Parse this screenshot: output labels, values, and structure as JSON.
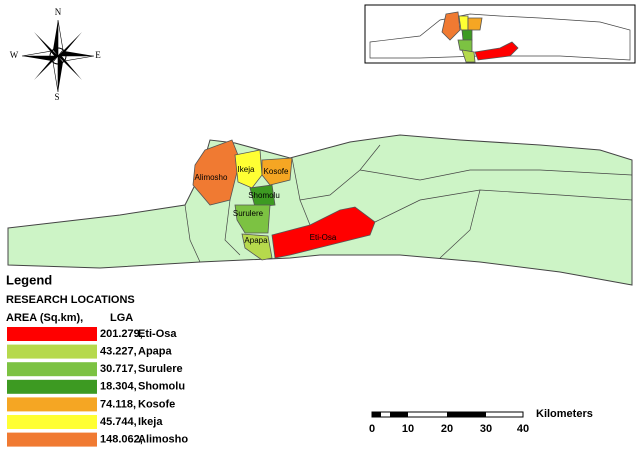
{
  "compass": {
    "north": "N",
    "south": "S",
    "east": "E",
    "west": "W"
  },
  "map": {
    "labels": [
      "Alimosho",
      "Ikeja",
      "Kosofe",
      "Shomolu",
      "Surulere",
      "Apapa",
      "Eti-Osa"
    ]
  },
  "legend": {
    "title": "Legend",
    "heading": "RESEARCH LOCATIONS",
    "area_header": "AREA (Sq.km),",
    "lga_header": "LGA",
    "items": [
      {
        "area": "201.279,",
        "lga": "Eti-Osa",
        "color": "#ff0000"
      },
      {
        "area": "43.227,",
        "lga": "Apapa",
        "color": "#b6d94c"
      },
      {
        "area": "30.717,",
        "lga": "Surulere",
        "color": "#7cc242"
      },
      {
        "area": "18.304,",
        "lga": "Shomolu",
        "color": "#3d9a22"
      },
      {
        "area": "74.118,",
        "lga": "Kosofe",
        "color": "#f5a623"
      },
      {
        "area": "45.744,",
        "lga": "Ikeja",
        "color": "#ffff33"
      },
      {
        "area": "148.062,",
        "lga": "Alimosho",
        "color": "#f07a32"
      }
    ]
  },
  "scale_bar": {
    "labels": [
      "0",
      "10",
      "20",
      "30",
      "40"
    ],
    "unit": "Kilometers"
  }
}
